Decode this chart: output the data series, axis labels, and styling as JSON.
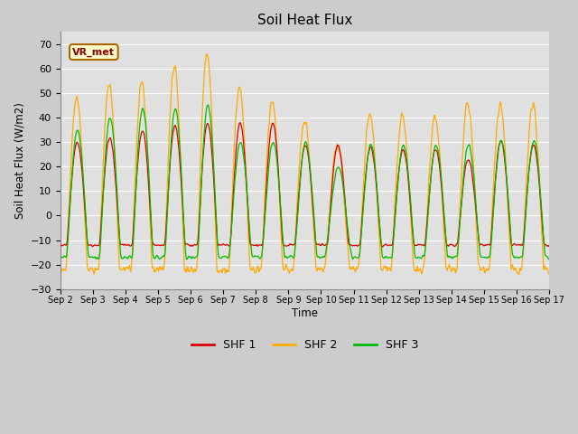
{
  "title": "Soil Heat Flux",
  "xlabel": "Time",
  "ylabel": "Soil Heat Flux (W/m2)",
  "ylim": [
    -30,
    75
  ],
  "yticks": [
    -30,
    -20,
    -10,
    0,
    10,
    20,
    30,
    40,
    50,
    60,
    70
  ],
  "x_tick_labels": [
    "Sep 2",
    "Sep 3",
    "Sep 4",
    "Sep 5",
    "Sep 6",
    "Sep 7",
    "Sep 8",
    "Sep 9",
    "Sep 9",
    "Sep 10",
    "Sep 11",
    "Sep 12",
    "Sep 13",
    "Sep 14",
    "Sep 15",
    "Sep 16",
    "Sep 17"
  ],
  "legend_labels": [
    "SHF 1",
    "SHF 2",
    "SHF 3"
  ],
  "line_colors": [
    "#dd0000",
    "#ffaa00",
    "#00bb00"
  ],
  "bg_color": "#cccccc",
  "plot_bg_color": "#e0e0e0",
  "annotation_text": "VR_met",
  "annotation_bg": "#ffffcc",
  "annotation_border": "#aa6600",
  "figsize": [
    6.4,
    4.8
  ],
  "dpi": 100
}
